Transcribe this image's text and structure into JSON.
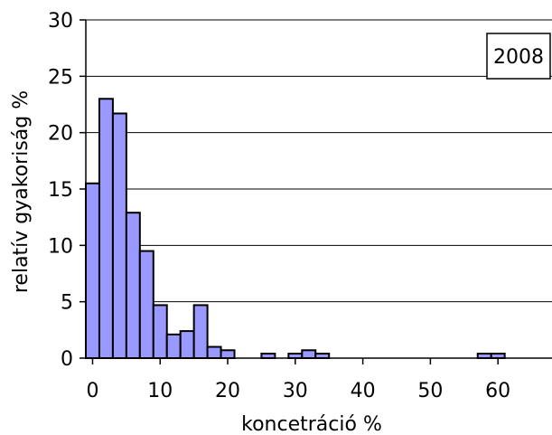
{
  "chart_data": {
    "type": "bar",
    "title": "",
    "xlabel": "koncetráció %",
    "ylabel": "relatív gyakoriság %",
    "legend_label": "2008",
    "legend_position": "top-right",
    "bin_width": 2,
    "xlim": [
      -1,
      68
    ],
    "ylim": [
      0,
      30
    ],
    "x_ticks": [
      0,
      10,
      20,
      30,
      40,
      50,
      60
    ],
    "y_ticks": [
      0,
      5,
      10,
      15,
      20,
      25,
      30
    ],
    "grid": "horizontal",
    "bar_color": "#9999FF",
    "bins": [
      {
        "x": 0,
        "value": 15.5
      },
      {
        "x": 2,
        "value": 23.0
      },
      {
        "x": 4,
        "value": 21.7
      },
      {
        "x": 6,
        "value": 12.9
      },
      {
        "x": 8,
        "value": 9.5
      },
      {
        "x": 10,
        "value": 4.7
      },
      {
        "x": 12,
        "value": 2.1
      },
      {
        "x": 14,
        "value": 2.4
      },
      {
        "x": 16,
        "value": 4.7
      },
      {
        "x": 18,
        "value": 1.0
      },
      {
        "x": 20,
        "value": 0.7
      },
      {
        "x": 26,
        "value": 0.4
      },
      {
        "x": 30,
        "value": 0.4
      },
      {
        "x": 32,
        "value": 0.7
      },
      {
        "x": 34,
        "value": 0.4
      },
      {
        "x": 58,
        "value": 0.4
      },
      {
        "x": 60,
        "value": 0.4
      }
    ]
  }
}
